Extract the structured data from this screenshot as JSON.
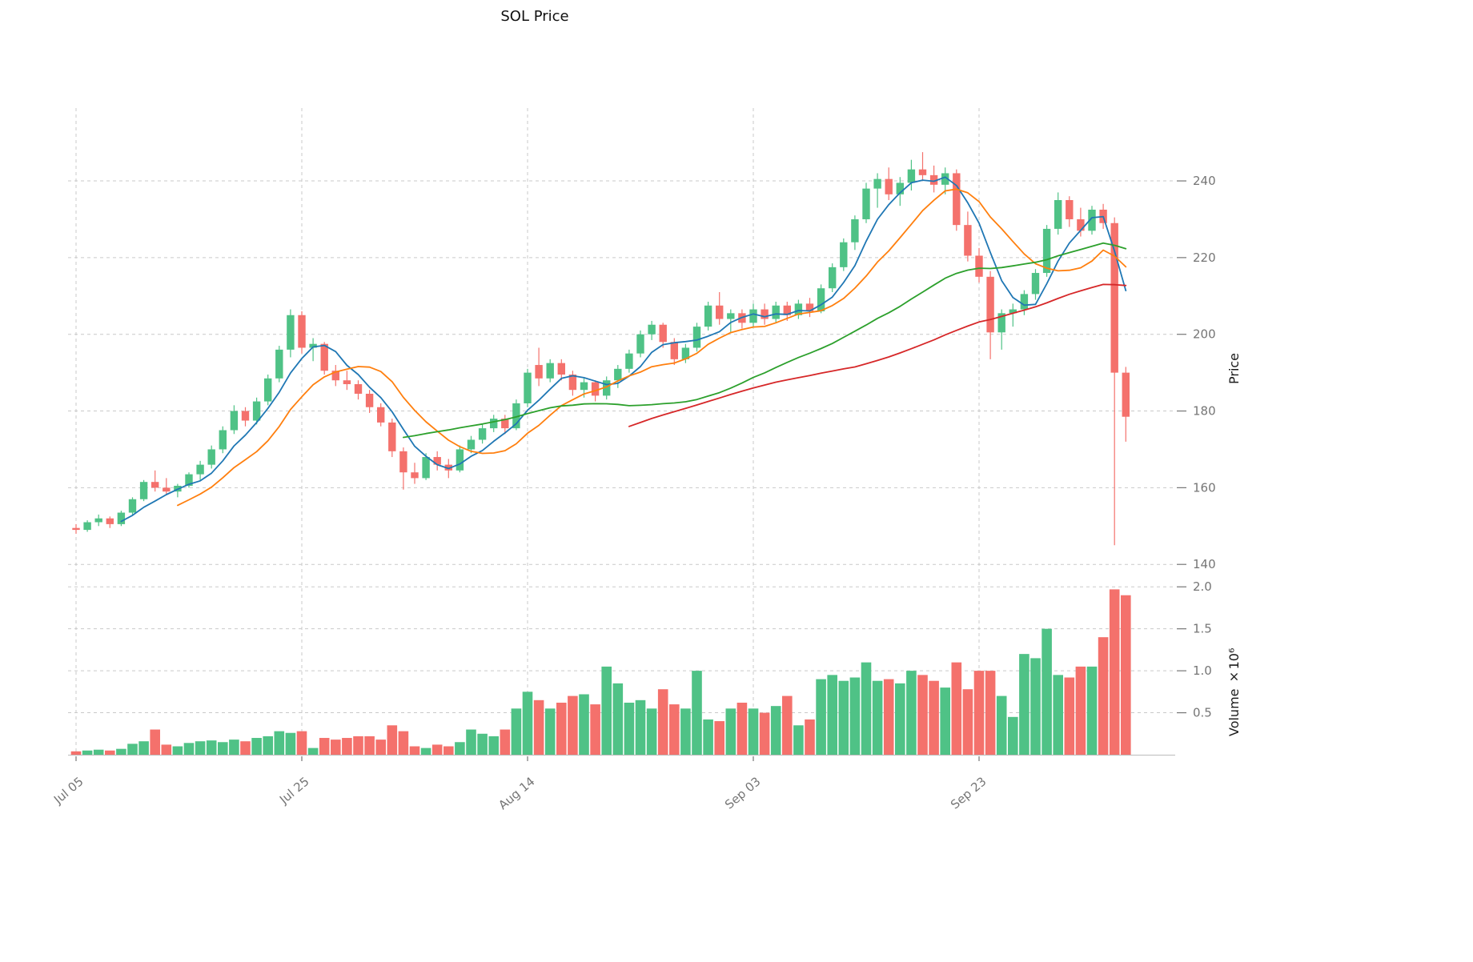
{
  "title": "SOL Price",
  "axes": {
    "price_label": "Price",
    "volume_label": "Volume ×10⁶",
    "price_ticks": [
      140,
      160,
      180,
      200,
      220,
      240
    ],
    "volume_ticks": [
      0.5,
      1.0,
      1.5,
      2.0
    ],
    "x_ticks": [
      {
        "index": 0,
        "label": "Jul 05"
      },
      {
        "index": 20,
        "label": "Jul 25"
      },
      {
        "index": 40,
        "label": "Aug 14"
      },
      {
        "index": 60,
        "label": "Sep 03"
      },
      {
        "index": 80,
        "label": "Sep 23"
      }
    ]
  },
  "colors": {
    "up": "#4fc286",
    "down": "#f4716c",
    "ma5": "#1f77b4",
    "ma10": "#ff7f0e",
    "ma30": "#2ca02c",
    "ma50": "#d62728",
    "grid": "#c9c9c9",
    "tick_text": "#757575",
    "title_text": "#111111"
  },
  "chart_data": {
    "type": "candlestick",
    "title": "SOL Price",
    "ylabel_price": "Price",
    "ylabel_volume": "Volume ×10⁶",
    "price_ylim": [
      139,
      259
    ],
    "volume_ylim": [
      0,
      2.05
    ],
    "volume_unit": "1e6",
    "legend_position": "none",
    "grid": "dashed",
    "moving_averages": [
      {
        "name": "ma-5",
        "period": 5,
        "color_key": "ma5"
      },
      {
        "name": "ma-10",
        "period": 10,
        "color_key": "ma10"
      },
      {
        "name": "ma-30",
        "period": 30,
        "color_key": "ma30"
      },
      {
        "name": "ma-50",
        "period": 50,
        "color_key": "ma50"
      }
    ],
    "ohlc": [
      [
        149.5,
        150.5,
        148.0,
        149.0
      ],
      [
        149.0,
        151.5,
        148.5,
        151.0
      ],
      [
        151.0,
        153.0,
        150.0,
        152.0
      ],
      [
        152.0,
        152.5,
        149.5,
        150.5
      ],
      [
        150.5,
        154.0,
        150.0,
        153.5
      ],
      [
        153.5,
        157.5,
        153.0,
        157.0
      ],
      [
        157.0,
        162.0,
        156.5,
        161.5
      ],
      [
        161.5,
        164.5,
        159.0,
        160.0
      ],
      [
        160.0,
        162.5,
        158.0,
        159.0
      ],
      [
        159.0,
        161.0,
        157.5,
        160.5
      ],
      [
        160.5,
        164.0,
        160.0,
        163.5
      ],
      [
        163.5,
        167.0,
        162.0,
        166.0
      ],
      [
        166.0,
        171.0,
        165.0,
        170.0
      ],
      [
        170.0,
        176.0,
        169.0,
        175.0
      ],
      [
        175.0,
        181.5,
        174.0,
        180.0
      ],
      [
        180.0,
        181.0,
        176.0,
        177.5
      ],
      [
        177.5,
        183.5,
        176.5,
        182.5
      ],
      [
        182.5,
        189.5,
        181.5,
        188.5
      ],
      [
        188.5,
        197.0,
        187.5,
        196.0
      ],
      [
        196.0,
        206.5,
        194.0,
        205.0
      ],
      [
        205.0,
        206.0,
        195.0,
        196.5
      ],
      [
        196.5,
        199.0,
        193.0,
        197.5
      ],
      [
        197.5,
        198.0,
        189.5,
        190.5
      ],
      [
        190.5,
        192.0,
        186.5,
        188.0
      ],
      [
        188.0,
        190.5,
        185.5,
        187.0
      ],
      [
        187.0,
        188.0,
        183.0,
        184.5
      ],
      [
        184.5,
        185.5,
        179.5,
        181.0
      ],
      [
        181.0,
        182.0,
        176.0,
        177.0
      ],
      [
        177.0,
        178.0,
        168.0,
        169.5
      ],
      [
        169.5,
        170.5,
        159.5,
        164.0
      ],
      [
        164.0,
        166.5,
        161.0,
        162.5
      ],
      [
        162.5,
        169.0,
        162.0,
        168.0
      ],
      [
        168.0,
        169.5,
        164.5,
        166.0
      ],
      [
        166.0,
        167.5,
        162.5,
        164.5
      ],
      [
        164.5,
        171.0,
        164.0,
        170.0
      ],
      [
        170.0,
        173.5,
        169.0,
        172.5
      ],
      [
        172.5,
        176.5,
        171.5,
        175.5
      ],
      [
        175.5,
        179.0,
        174.5,
        178.0
      ],
      [
        178.0,
        179.0,
        174.0,
        175.5
      ],
      [
        175.5,
        183.0,
        175.0,
        182.0
      ],
      [
        182.0,
        191.0,
        181.0,
        190.0
      ],
      [
        192.0,
        196.5,
        186.5,
        188.5
      ],
      [
        188.5,
        193.5,
        187.5,
        192.5
      ],
      [
        192.5,
        193.5,
        188.0,
        189.5
      ],
      [
        189.5,
        190.5,
        184.0,
        185.5
      ],
      [
        185.5,
        188.5,
        183.5,
        187.5
      ],
      [
        187.5,
        188.0,
        182.5,
        184.0
      ],
      [
        184.0,
        189.0,
        183.0,
        188.0
      ],
      [
        188.0,
        192.0,
        186.0,
        191.0
      ],
      [
        191.0,
        196.0,
        190.0,
        195.0
      ],
      [
        195.0,
        201.0,
        194.0,
        200.0
      ],
      [
        200.0,
        203.5,
        198.5,
        202.5
      ],
      [
        202.5,
        203.0,
        196.5,
        198.0
      ],
      [
        198.0,
        199.0,
        192.0,
        193.5
      ],
      [
        193.5,
        197.5,
        192.5,
        196.5
      ],
      [
        196.5,
        203.0,
        195.5,
        202.0
      ],
      [
        202.0,
        208.5,
        201.0,
        207.5
      ],
      [
        207.5,
        211.0,
        202.5,
        204.0
      ],
      [
        204.0,
        206.5,
        200.5,
        205.5
      ],
      [
        205.5,
        206.5,
        201.5,
        203.0
      ],
      [
        203.0,
        208.0,
        202.0,
        206.5
      ],
      [
        206.5,
        208.0,
        202.5,
        204.0
      ],
      [
        204.0,
        208.5,
        203.0,
        207.5
      ],
      [
        207.5,
        208.5,
        203.5,
        205.0
      ],
      [
        205.0,
        209.0,
        204.0,
        208.0
      ],
      [
        208.0,
        209.5,
        204.5,
        206.0
      ],
      [
        206.0,
        213.0,
        205.5,
        212.0
      ],
      [
        212.0,
        218.5,
        211.0,
        217.5
      ],
      [
        217.5,
        225.0,
        216.5,
        224.0
      ],
      [
        224.0,
        231.0,
        222.0,
        230.0
      ],
      [
        230.0,
        239.5,
        229.0,
        238.0
      ],
      [
        238.0,
        242.0,
        233.0,
        240.5
      ],
      [
        240.5,
        243.5,
        235.0,
        236.5
      ],
      [
        236.5,
        241.0,
        233.5,
        239.5
      ],
      [
        239.5,
        245.5,
        237.5,
        243.0
      ],
      [
        243.0,
        247.5,
        240.0,
        241.5
      ],
      [
        241.5,
        244.0,
        237.0,
        239.0
      ],
      [
        239.0,
        243.5,
        236.5,
        242.0
      ],
      [
        242.0,
        243.0,
        227.0,
        228.5
      ],
      [
        228.5,
        232.0,
        219.0,
        220.5
      ],
      [
        220.5,
        222.5,
        213.5,
        215.0
      ],
      [
        215.0,
        216.5,
        193.5,
        200.5
      ],
      [
        200.5,
        206.5,
        196.0,
        205.5
      ],
      [
        205.5,
        208.0,
        202.0,
        206.5
      ],
      [
        206.5,
        211.5,
        205.0,
        210.5
      ],
      [
        210.5,
        217.0,
        209.0,
        216.0
      ],
      [
        216.0,
        228.5,
        215.0,
        227.5
      ],
      [
        227.5,
        237.0,
        226.0,
        235.0
      ],
      [
        235.0,
        236.0,
        228.0,
        230.0
      ],
      [
        230.0,
        233.0,
        225.5,
        227.0
      ],
      [
        227.0,
        233.5,
        226.0,
        232.5
      ],
      [
        232.5,
        234.0,
        227.5,
        229.0
      ],
      [
        229.0,
        230.5,
        145.0,
        190.0
      ],
      [
        190.0,
        191.5,
        172.0,
        178.5
      ]
    ],
    "volume": [
      0.04,
      0.05,
      0.06,
      0.05,
      0.07,
      0.13,
      0.16,
      0.3,
      0.12,
      0.1,
      0.14,
      0.16,
      0.17,
      0.15,
      0.18,
      0.16,
      0.2,
      0.22,
      0.28,
      0.26,
      0.28,
      0.08,
      0.2,
      0.18,
      0.2,
      0.22,
      0.22,
      0.18,
      0.35,
      0.28,
      0.1,
      0.08,
      0.12,
      0.1,
      0.15,
      0.3,
      0.25,
      0.22,
      0.3,
      0.55,
      0.75,
      0.65,
      0.55,
      0.62,
      0.7,
      0.72,
      0.6,
      1.05,
      0.85,
      0.62,
      0.65,
      0.55,
      0.78,
      0.6,
      0.55,
      1.0,
      0.42,
      0.4,
      0.55,
      0.62,
      0.55,
      0.5,
      0.58,
      0.7,
      0.35,
      0.42,
      0.9,
      0.95,
      0.88,
      0.92,
      1.1,
      0.88,
      0.9,
      0.85,
      1.0,
      0.95,
      0.88,
      0.8,
      1.1,
      0.78,
      1.0,
      1.0,
      0.7,
      0.45,
      1.2,
      1.15,
      1.5,
      0.95,
      0.92,
      1.05,
      1.05,
      1.4,
      1.97,
      1.9
    ]
  }
}
